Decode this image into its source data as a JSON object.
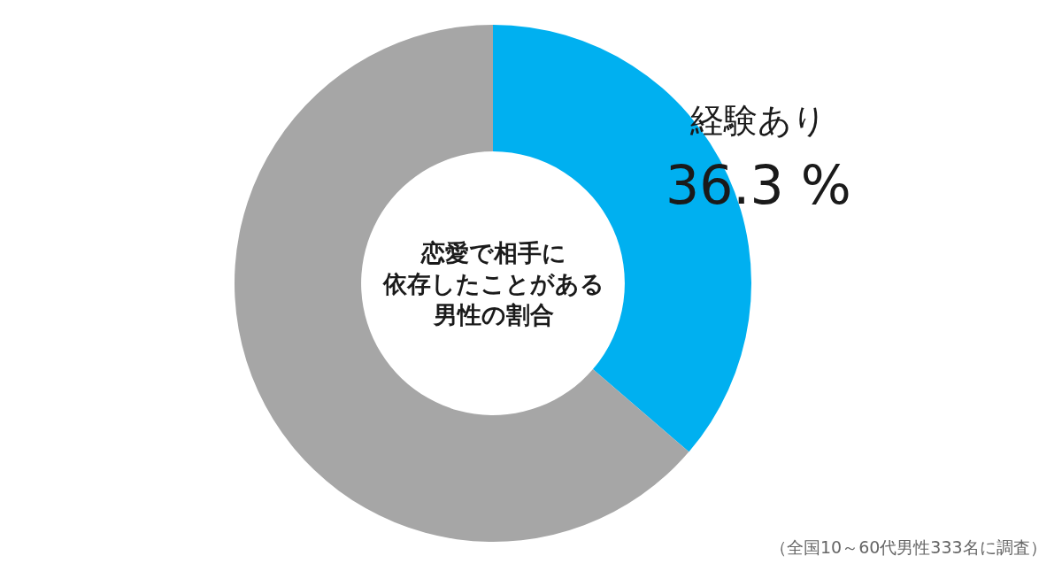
{
  "chart_data": {
    "type": "donut",
    "title": "恋愛で相手に依存したことがある男性の割合",
    "categories": [
      "経験あり",
      null
    ],
    "values": [
      36.3,
      63.7
    ],
    "colors": [
      "#00b0f0",
      "#a6a6a6"
    ],
    "value_labels": [
      "36.3 %",
      null
    ],
    "annotations": [
      "（全国10～60代男性333名に調査）"
    ]
  }
}
